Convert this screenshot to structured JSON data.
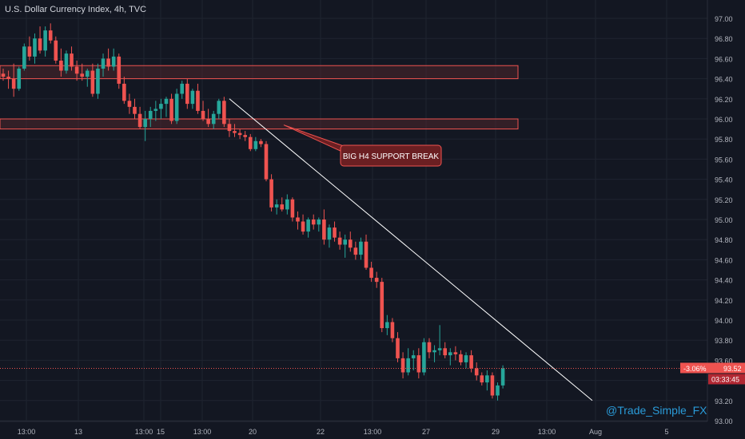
{
  "chart_data": {
    "type": "candlestick",
    "title": "U.S. Dollar Currency Index, 4h, TVC",
    "y_ticks": [
      "97.00",
      "96.80",
      "96.60",
      "96.40",
      "96.20",
      "96.00",
      "95.80",
      "95.60",
      "95.40",
      "95.20",
      "95.00",
      "94.80",
      "94.60",
      "94.40",
      "94.20",
      "94.00",
      "93.80",
      "93.60",
      "93.40",
      "93.20",
      "93.00"
    ],
    "ylim": [
      93.0,
      97.1
    ],
    "x_ticks": [
      "13:00",
      "13",
      "13:00",
      "15",
      "13:00",
      "20",
      "22",
      "13:00",
      "27",
      "29",
      "13:00",
      "Aug",
      "5"
    ],
    "candles": [
      [
        96.45,
        96.5,
        96.38,
        96.42
      ],
      [
        96.42,
        96.48,
        96.3,
        96.4
      ],
      [
        96.4,
        96.55,
        96.22,
        96.3
      ],
      [
        96.3,
        96.52,
        96.28,
        96.5
      ],
      [
        96.5,
        96.75,
        96.48,
        96.72
      ],
      [
        96.72,
        96.82,
        96.58,
        96.62
      ],
      [
        96.62,
        96.85,
        96.55,
        96.8
      ],
      [
        96.8,
        96.92,
        96.65,
        96.68
      ],
      [
        96.68,
        96.92,
        96.62,
        96.88
      ],
      [
        96.88,
        96.95,
        96.75,
        96.78
      ],
      [
        96.78,
        96.82,
        96.55,
        96.58
      ],
      [
        96.58,
        96.7,
        96.42,
        96.48
      ],
      [
        96.48,
        96.68,
        96.45,
        96.65
      ],
      [
        96.65,
        96.72,
        96.48,
        96.52
      ],
      [
        96.52,
        96.58,
        96.38,
        96.45
      ],
      [
        96.45,
        96.55,
        96.38,
        96.42
      ],
      [
        96.42,
        96.5,
        96.32,
        96.48
      ],
      [
        96.48,
        96.55,
        96.22,
        96.25
      ],
      [
        96.25,
        96.55,
        96.2,
        96.5
      ],
      [
        96.5,
        96.65,
        96.42,
        96.6
      ],
      [
        96.6,
        96.7,
        96.48,
        96.52
      ],
      [
        96.52,
        96.7,
        96.48,
        96.62
      ],
      [
        96.62,
        96.65,
        96.3,
        96.35
      ],
      [
        96.35,
        96.42,
        96.15,
        96.18
      ],
      [
        96.18,
        96.25,
        96.05,
        96.12
      ],
      [
        96.12,
        96.2,
        96.0,
        96.05
      ],
      [
        96.05,
        96.12,
        95.9,
        95.92
      ],
      [
        95.92,
        96.08,
        95.78,
        96.0
      ],
      [
        96.0,
        96.12,
        95.92,
        96.08
      ],
      [
        96.08,
        96.18,
        95.98,
        96.1
      ],
      [
        96.1,
        96.2,
        96.0,
        96.15
      ],
      [
        96.15,
        96.22,
        96.02,
        96.2
      ],
      [
        96.2,
        96.25,
        95.95,
        95.98
      ],
      [
        95.98,
        96.3,
        95.95,
        96.25
      ],
      [
        96.25,
        96.38,
        96.2,
        96.35
      ],
      [
        96.35,
        96.4,
        96.1,
        96.15
      ],
      [
        96.15,
        96.3,
        96.1,
        96.28
      ],
      [
        96.28,
        96.35,
        96.05,
        96.08
      ],
      [
        96.08,
        96.18,
        95.98,
        96.0
      ],
      [
        96.0,
        96.1,
        95.92,
        95.95
      ],
      [
        95.95,
        96.08,
        95.9,
        96.05
      ],
      [
        96.05,
        96.2,
        96.0,
        96.18
      ],
      [
        96.18,
        96.22,
        95.92,
        95.95
      ],
      [
        95.95,
        96.0,
        95.82,
        95.88
      ],
      [
        95.88,
        95.95,
        95.82,
        95.86
      ],
      [
        95.86,
        95.9,
        95.8,
        95.84
      ],
      [
        95.84,
        95.88,
        95.78,
        95.82
      ],
      [
        95.82,
        95.85,
        95.68,
        95.7
      ],
      [
        95.7,
        95.82,
        95.68,
        95.78
      ],
      [
        95.78,
        95.8,
        95.72,
        95.75
      ],
      [
        95.75,
        95.78,
        95.38,
        95.4
      ],
      [
        95.4,
        95.45,
        95.08,
        95.12
      ],
      [
        95.12,
        95.2,
        95.05,
        95.15
      ],
      [
        95.15,
        95.22,
        95.08,
        95.1
      ],
      [
        95.1,
        95.25,
        95.05,
        95.2
      ],
      [
        95.2,
        95.22,
        94.98,
        95.02
      ],
      [
        95.02,
        95.08,
        94.9,
        94.98
      ],
      [
        94.98,
        95.05,
        94.85,
        94.88
      ],
      [
        94.88,
        95.02,
        94.82,
        95.0
      ],
      [
        95.0,
        95.05,
        94.9,
        94.95
      ],
      [
        94.95,
        95.02,
        94.88,
        95.0
      ],
      [
        95.0,
        95.1,
        94.75,
        94.8
      ],
      [
        94.8,
        94.95,
        94.72,
        94.92
      ],
      [
        94.92,
        94.98,
        94.78,
        94.82
      ],
      [
        94.82,
        94.88,
        94.7,
        94.75
      ],
      [
        94.75,
        94.85,
        94.62,
        94.8
      ],
      [
        94.8,
        94.88,
        94.68,
        94.72
      ],
      [
        94.72,
        94.78,
        94.6,
        94.65
      ],
      [
        94.65,
        94.82,
        94.6,
        94.78
      ],
      [
        94.78,
        94.85,
        94.5,
        94.52
      ],
      [
        94.52,
        94.58,
        94.38,
        94.42
      ],
      [
        94.42,
        94.48,
        94.32,
        94.38
      ],
      [
        94.38,
        94.42,
        93.88,
        93.92
      ],
      [
        93.92,
        94.05,
        93.85,
        93.98
      ],
      [
        93.98,
        94.02,
        93.78,
        93.82
      ],
      [
        93.82,
        93.88,
        93.58,
        93.62
      ],
      [
        93.62,
        93.68,
        93.42,
        93.48
      ],
      [
        93.48,
        93.72,
        93.45,
        93.62
      ],
      [
        93.62,
        93.7,
        93.5,
        93.65
      ],
      [
        93.65,
        93.72,
        93.42,
        93.48
      ],
      [
        93.48,
        93.82,
        93.45,
        93.78
      ],
      [
        93.78,
        93.82,
        93.62,
        93.68
      ],
      [
        93.68,
        93.75,
        93.58,
        93.7
      ],
      [
        93.7,
        93.95,
        93.65,
        93.72
      ],
      [
        93.72,
        93.78,
        93.62,
        93.65
      ],
      [
        93.65,
        93.72,
        93.55,
        93.68
      ],
      [
        93.68,
        93.74,
        93.6,
        93.66
      ],
      [
        93.66,
        93.7,
        93.55,
        93.58
      ],
      [
        93.58,
        93.68,
        93.52,
        93.65
      ],
      [
        93.65,
        93.7,
        93.48,
        93.52
      ],
      [
        93.52,
        93.58,
        93.4,
        93.45
      ],
      [
        93.45,
        93.48,
        93.35,
        93.38
      ],
      [
        93.38,
        93.5,
        93.3,
        93.45
      ],
      [
        93.45,
        93.48,
        93.22,
        93.25
      ],
      [
        93.25,
        93.38,
        93.2,
        93.35
      ],
      [
        93.35,
        93.55,
        93.32,
        93.52
      ]
    ],
    "resistance_zones": [
      [
        96.4,
        96.53
      ],
      [
        95.9,
        96.0
      ]
    ],
    "trendline": {
      "from_index": 43,
      "from_price": 96.2,
      "to_index": 112,
      "to_price": 93.2
    },
    "annotation": {
      "text": "BIG H4 SUPPORT BREAK",
      "target_price": 95.94
    },
    "current_price": 93.52,
    "current_price_label": "93.52",
    "change_label": "-3.06%",
    "countdown_label": "03:33:45",
    "colors": {
      "up": "#26a69a",
      "down": "#ef5350",
      "background": "#131722",
      "grid": "#1f2430",
      "zone_fill": "#5a2a2e",
      "zone_border": "#ef5350",
      "trendline": "#ffffff",
      "axis_text": "#b2b5be"
    },
    "watermark": "@Trade_Simple_FX"
  }
}
